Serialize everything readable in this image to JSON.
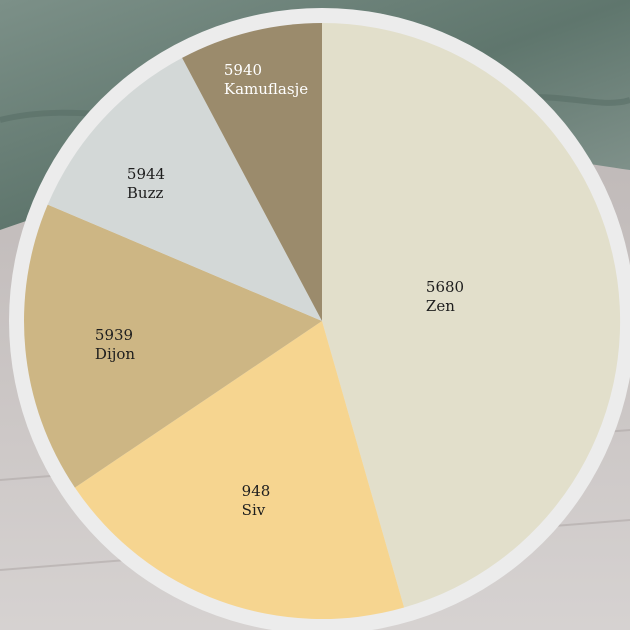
{
  "palette": {
    "title": "",
    "colors": [
      {
        "code": "5680",
        "name": "Zen",
        "hex": "#e2dfcb",
        "text_color": "#1e1e1e"
      },
      {
        "code": "948",
        "name": "Siv",
        "hex": "#f6d590",
        "text_color": "#1e1e1e"
      },
      {
        "code": "5939",
        "name": "Dijon",
        "hex": "#cdb684",
        "text_color": "#1e1e1e"
      },
      {
        "code": "5944",
        "name": "Buzz",
        "hex": "#d3d8d7",
        "text_color": "#1e1e1e"
      },
      {
        "code": "5940",
        "name": "Kamuflasje",
        "hex": "#9b8b6c",
        "text_color": "#ffffff"
      }
    ]
  },
  "background": {
    "ring_color": "#ececec",
    "fabric_color": "#6f847b",
    "floor_color": "#c9c4c3"
  }
}
